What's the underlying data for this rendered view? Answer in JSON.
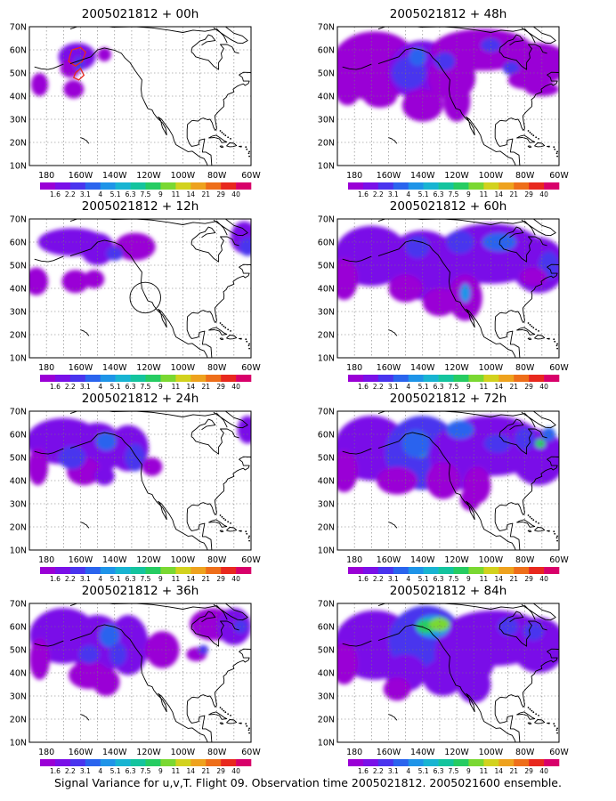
{
  "figure_caption": "Signal Variance for u,v,T. Flight 09. Observation time 2005021812. 2005021600 ensemble.",
  "lat_labels": [
    "70N",
    "60N",
    "50N",
    "40N",
    "30N",
    "20N",
    "10N"
  ],
  "lon_labels": [
    "180",
    "160W",
    "140W",
    "120W",
    "100W",
    "80W",
    "60W"
  ],
  "colorbar": {
    "labels": [
      "1.6",
      "2.2",
      "3.1",
      "4",
      "5.1",
      "6.3",
      "7.5",
      "9",
      "11",
      "14",
      "21",
      "29",
      "40"
    ],
    "colors": [
      "#9a00d6",
      "#7a10e8",
      "#4a34ee",
      "#2a64ee",
      "#1e94e8",
      "#18b4d2",
      "#14c49e",
      "#26cc62",
      "#7ad832",
      "#d2d21e",
      "#eea21e",
      "#ee6e1a",
      "#e8281e",
      "#d8006a"
    ]
  },
  "panels": [
    {
      "title": "2005021812 + 00h"
    },
    {
      "title": "2005021812 + 48h"
    },
    {
      "title": "2005021812 + 12h"
    },
    {
      "title": "2005021812 + 60h"
    },
    {
      "title": "2005021812 + 24h"
    },
    {
      "title": "2005021812 + 72h"
    },
    {
      "title": "2005021812 + 36h"
    },
    {
      "title": "2005021812 + 84h"
    }
  ]
}
